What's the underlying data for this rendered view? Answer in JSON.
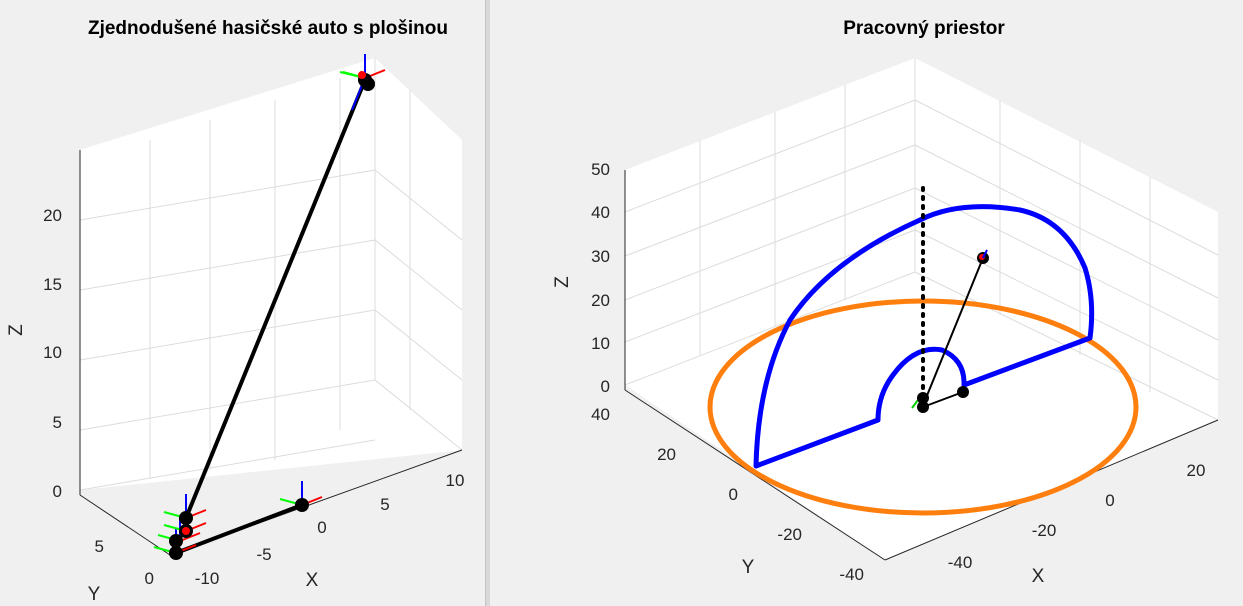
{
  "chart_data": [
    {
      "type": "line3d",
      "title": "Zjednodušené hasičské auto s plošinou",
      "xlabel": "X",
      "ylabel": "Y",
      "zlabel": "Z",
      "x_ticks": [
        "-10",
        "-5",
        "0",
        "5",
        "10"
      ],
      "y_ticks": [
        "0",
        "5"
      ],
      "z_ticks": [
        "0",
        "5",
        "10",
        "15",
        "20"
      ],
      "xlim": [
        -12,
        12
      ],
      "ylim": [
        0,
        8
      ],
      "zlim": [
        0,
        25
      ],
      "grid": true,
      "series": [
        {
          "color": "#000000",
          "points": [
            [
              -12,
              0,
              0
            ],
            [
              -12,
              0,
              1
            ],
            [
              -12,
              0,
              2
            ],
            [
              -12,
              0,
              2.5
            ],
            [
              0,
              0,
              0
            ],
            [
              10,
              0,
              25
            ],
            [
              10,
              0,
              25
            ]
          ]
        }
      ],
      "colors": {
        "link": "#000000",
        "frame_x": "#ff0000",
        "frame_y": "#00ff00",
        "frame_z": "#0000ff"
      }
    },
    {
      "type": "line3d",
      "title": "Pracovný priestor",
      "xlabel": "X",
      "ylabel": "Y",
      "zlabel": "Z",
      "x_ticks": [
        "-40",
        "-20",
        "0",
        "20"
      ],
      "y_ticks": [
        "-40",
        "-20",
        "0",
        "20",
        "40"
      ],
      "z_ticks": [
        "0",
        "10",
        "20",
        "30",
        "40",
        "50"
      ],
      "xlim": [
        -50,
        30
      ],
      "ylim": [
        -45,
        45
      ],
      "zlim": [
        0,
        50
      ],
      "grid": true,
      "series": [
        {
          "color": "#0000ff",
          "shape": "outer workspace boundary (semicircle + base)"
        },
        {
          "color": "#ff7f0e",
          "shape": "reach circle on base plane"
        },
        {
          "color": "#000000",
          "style": "dotted",
          "shape": "vertical column"
        },
        {
          "color": "#000000",
          "shape": "manipulator arm"
        }
      ],
      "colors": {
        "workspace": "#0000ff",
        "circle": "#ff7f0e",
        "arm": "#000000"
      }
    }
  ]
}
